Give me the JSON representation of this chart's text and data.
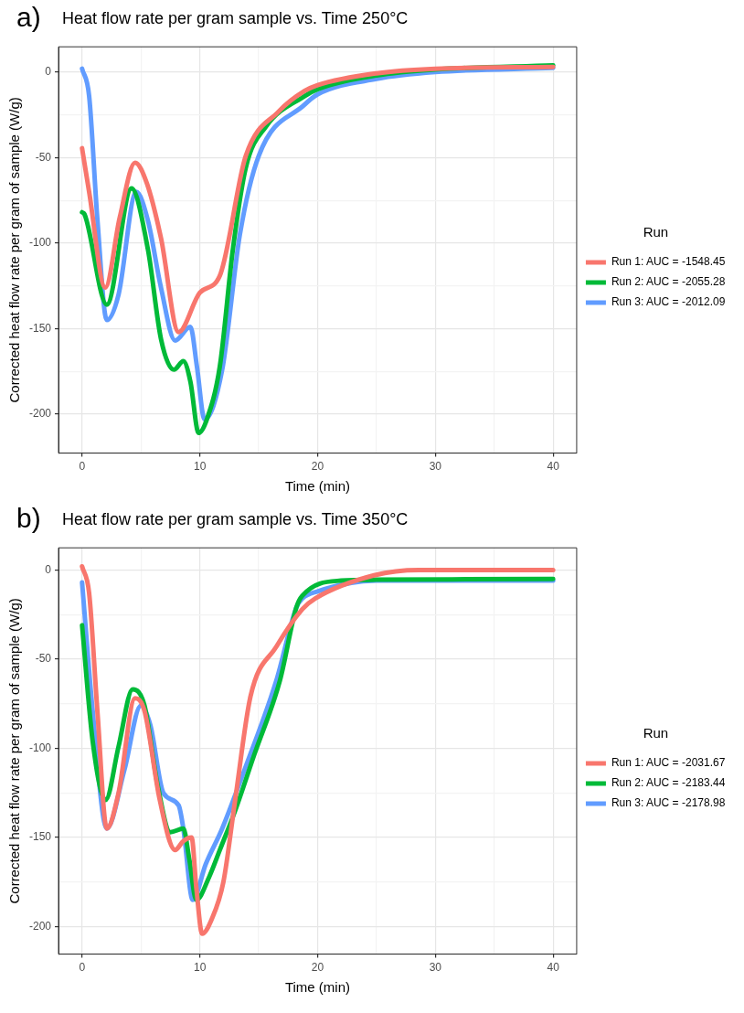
{
  "chart_data": [
    {
      "type": "line",
      "title": "Heat flow rate per gram sample vs. Time 250°C",
      "xlabel": "Time (min)",
      "ylabel": "Corrected heat flow rate per gram of sample (W/g)",
      "legend_title": "Run",
      "annotations": [
        "a)"
      ],
      "legend": "right",
      "grid": true,
      "line_style": "solid",
      "xlim": [
        -2,
        42
      ],
      "xticks": [
        0,
        {
          "value": 5,
          "label": null
        },
        10,
        {
          "value": 15,
          "label": null
        },
        20,
        {
          "value": 25,
          "label": null
        },
        30,
        {
          "value": 35,
          "label": null
        },
        40
      ],
      "ylim": [
        -222.8,
        14.8
      ],
      "yticks": [
        -200,
        {
          "value": -175,
          "label": null
        },
        -150,
        {
          "value": -125,
          "label": null
        },
        -100,
        {
          "value": -75,
          "label": null
        },
        -50,
        {
          "value": -25,
          "label": null
        },
        0
      ],
      "series": [
        {
          "name": "Run 1: AUC = -1548.45",
          "color": "#f8766d",
          "x": [
            0,
            0.6,
            1.97,
            3.2,
            4.5,
            5.5,
            6.7,
            8.2,
            10,
            11.7,
            13.9,
            16.7,
            18.9,
            20,
            25,
            30,
            40
          ],
          "values": [
            -44.5,
            -70,
            -126,
            -85,
            -53,
            -65,
            -97,
            -152,
            -129,
            -119,
            -49,
            -23,
            -11,
            -7.6,
            -0.7,
            2,
            3
          ]
        },
        {
          "name": "Run 2: AUC = -2055.28",
          "color": "#00ba38",
          "x": [
            0,
            0.2,
            2.1,
            4.2,
            5.6,
            6.7,
            7.8,
            8.6,
            9.2,
            9.9,
            10.6,
            11.7,
            12.8,
            13.9,
            15.6,
            18.9,
            20,
            25,
            30,
            40
          ],
          "values": [
            -82,
            -83,
            -136,
            -68,
            -104,
            -156,
            -174,
            -169,
            -181,
            -211,
            -203,
            -172,
            -104,
            -56,
            -32,
            -14,
            -10,
            -2,
            1.5,
            4
          ]
        },
        {
          "name": "Run 3: AUC = -2012.09",
          "color": "#619cff",
          "x": [
            0,
            0.6,
            1.3,
            2.1,
            3.1,
            4.6,
            5.6,
            6.7,
            7.9,
            9.2,
            9.75,
            10.4,
            11.9,
            13.4,
            15,
            18.9,
            20,
            25,
            30,
            40
          ],
          "values": [
            2,
            -14,
            -86,
            -145,
            -130,
            -70,
            -87,
            -126,
            -157,
            -149,
            -172,
            -203,
            -174,
            -95,
            -49,
            -19,
            -13,
            -4,
            0,
            2.5
          ]
        }
      ]
    },
    {
      "type": "line",
      "title": "Heat flow rate per gram sample vs. Time 350°C",
      "xlabel": "Time (min)",
      "ylabel": "Corrected heat flow rate per gram of sample (W/g)",
      "legend_title": "Run",
      "annotations": [
        "b)"
      ],
      "legend": "right",
      "grid": true,
      "line_style": "solid",
      "xlim": [
        -2,
        42
      ],
      "xticks": [
        0,
        {
          "value": 5,
          "label": null
        },
        10,
        {
          "value": 15,
          "label": null
        },
        20,
        {
          "value": 25,
          "label": null
        },
        30,
        {
          "value": 35,
          "label": null
        },
        40
      ],
      "ylim": [
        -215.4,
        12.4
      ],
      "yticks": [
        -200,
        {
          "value": -175,
          "label": null
        },
        -150,
        {
          "value": -125,
          "label": null
        },
        -100,
        {
          "value": -75,
          "label": null
        },
        -50,
        {
          "value": -25,
          "label": null
        },
        0
      ],
      "series": [
        {
          "name": "Run 1: AUC = -2031.67",
          "color": "#f8766d",
          "x": [
            0,
            0.6,
            1.3,
            2.1,
            3.1,
            4.5,
            5.3,
            6.6,
            7.9,
            8.6,
            9.3,
            9.7,
            10.2,
            11,
            12,
            13,
            14.3,
            16.5,
            18.7,
            19.8,
            24.8,
            28.6,
            40
          ],
          "values": [
            2,
            -13,
            -79,
            -145,
            -125,
            -72,
            -79,
            -129,
            -157,
            -152,
            -150,
            -178,
            -204,
            -196,
            -175,
            -129,
            -71,
            -43,
            -22,
            -16,
            -3,
            0,
            0
          ]
        },
        {
          "name": "Run 2: AUC = -2183.44",
          "color": "#00ba38",
          "x": [
            0,
            0.9,
            2,
            3.1,
            4.3,
            5.3,
            6.4,
            7.5,
            8.6,
            9.1,
            9.7,
            10.8,
            11.7,
            13,
            14.6,
            16.8,
            18.2,
            18.7,
            22,
            25,
            40
          ],
          "values": [
            -31,
            -96,
            -129,
            -99,
            -67,
            -76,
            -120,
            -147,
            -145,
            -162,
            -185,
            -172,
            -157,
            -135,
            -104,
            -62,
            -21,
            -14.5,
            -6,
            -5.5,
            -5
          ]
        },
        {
          "name": "Run 3: AUC = -2178.98",
          "color": "#619cff",
          "x": [
            0,
            0.9,
            2.1,
            3.6,
            5,
            5.8,
            6.9,
            8.2,
            8.6,
            9.4,
            10.5,
            11.9,
            13.8,
            16.5,
            18.2,
            18.7,
            20,
            25,
            40
          ],
          "values": [
            -7,
            -79,
            -145,
            -112,
            -76,
            -87,
            -125,
            -132,
            -145,
            -185,
            -165,
            -145,
            -112,
            -62,
            -21,
            -16,
            -12,
            -6,
            -6
          ]
        }
      ]
    }
  ]
}
